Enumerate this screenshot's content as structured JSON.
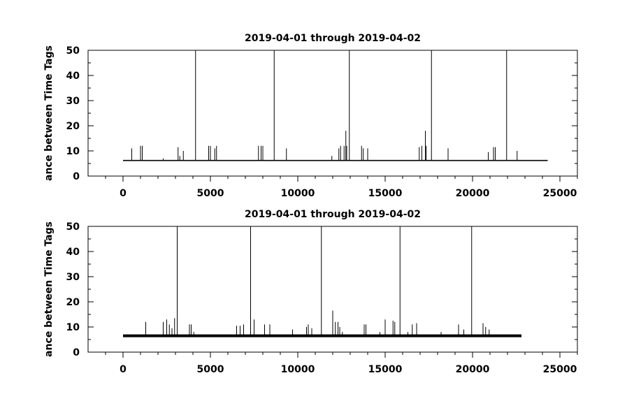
{
  "chart_data": [
    {
      "type": "line",
      "title": "2019-04-01 through 2019-04-02",
      "ylabel": "ance between Time Tags",
      "xlabel": "",
      "xlim": [
        -2000,
        26000
      ],
      "ylim": [
        0,
        50
      ],
      "x_ticks": [
        0,
        5000,
        10000,
        15000,
        20000,
        25000
      ],
      "y_ticks": [
        0,
        10,
        20,
        30,
        40,
        50
      ],
      "grid": false,
      "x_range": [
        0,
        24300
      ],
      "baseline": 6.2,
      "series": [
        {
          "x": [
            500,
            1000,
            1100,
            2300,
            3150,
            3250,
            3450,
            4150,
            4900,
            5000,
            5250,
            5350,
            7750,
            7900,
            8000,
            8650,
            9350,
            11950,
            12350,
            12450,
            12650,
            12750,
            12800,
            12950,
            13650,
            13750,
            14000,
            16950,
            17100,
            17300,
            17350,
            17650,
            18600,
            20900,
            21200,
            21300,
            21950,
            22550
          ],
          "values": [
            11,
            12,
            12,
            7,
            11.5,
            8,
            10,
            50,
            12,
            12,
            11,
            12,
            12,
            12,
            12,
            50,
            11,
            8,
            11,
            12,
            12,
            18,
            12,
            50,
            12,
            11,
            11,
            11.5,
            12,
            18,
            12,
            50,
            11,
            9.5,
            11.5,
            11.5,
            50,
            10
          ]
        }
      ]
    },
    {
      "type": "line",
      "title": "2019-04-01 through 2019-04-02",
      "ylabel": "ance between Time Tags",
      "xlabel": "",
      "xlim": [
        -2000,
        26000
      ],
      "ylim": [
        0,
        50
      ],
      "x_ticks": [
        0,
        5000,
        10000,
        15000,
        20000,
        25000
      ],
      "y_ticks": [
        0,
        10,
        20,
        30,
        40,
        50
      ],
      "grid": false,
      "x_range": [
        0,
        22800
      ],
      "baseline": 6.5,
      "series": [
        {
          "x": [
            1300,
            2300,
            2500,
            2650,
            2800,
            2950,
            3100,
            3800,
            3900,
            4050,
            6500,
            6700,
            6900,
            7300,
            7500,
            8100,
            8400,
            9700,
            10500,
            10600,
            10800,
            11350,
            12000,
            12150,
            12300,
            12400,
            12550,
            13800,
            13900,
            14700,
            15000,
            15450,
            15550,
            15850,
            16300,
            16550,
            16800,
            18200,
            19200,
            19500,
            19950,
            20600,
            20750,
            20950
          ],
          "values": [
            12,
            12,
            13,
            11,
            9.5,
            13.5,
            50,
            11,
            11,
            8,
            10.5,
            10.5,
            11,
            50,
            13,
            11,
            11,
            9,
            10,
            11,
            9.5,
            50,
            16.5,
            12,
            12,
            10,
            8,
            11,
            11,
            8,
            13,
            12.5,
            12,
            50,
            8,
            11,
            11.5,
            8,
            11,
            9,
            50,
            11.5,
            10,
            9
          ]
        }
      ]
    }
  ]
}
